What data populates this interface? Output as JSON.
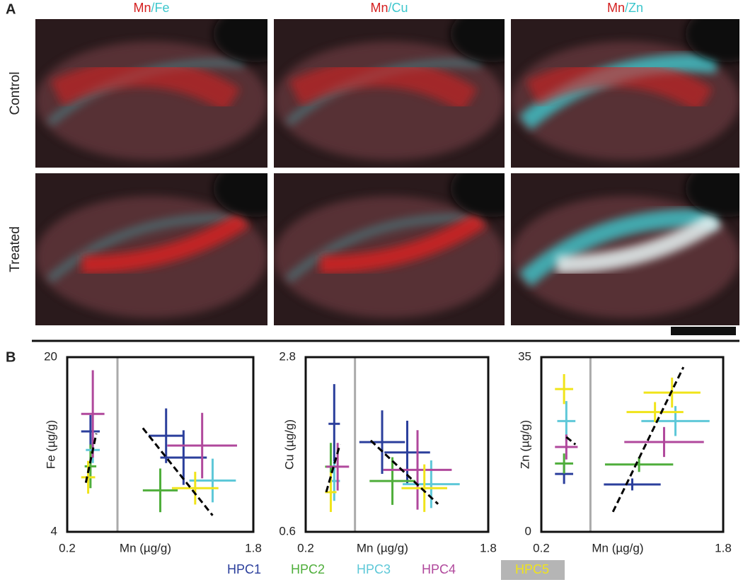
{
  "figure": {
    "panel_a_label": "A",
    "panel_b_label": "B",
    "columns": [
      [
        "Mn",
        "/Fe"
      ],
      [
        "Mn",
        "/Cu"
      ],
      [
        "Mn",
        "/Zn"
      ]
    ],
    "rows": [
      "Control",
      "Treated"
    ]
  },
  "chart_data": [
    {
      "type": "scatter",
      "x_label": "Mn (µg/g)",
      "y_label": "Fe (µg/g)",
      "xlim": [
        0.2,
        1.8
      ],
      "ylim": [
        4,
        20
      ],
      "xticks": [
        0.2,
        1.8
      ],
      "yticks": [
        4,
        20
      ],
      "series": [
        {
          "name": "HPC1",
          "color": "#2b3f9c",
          "x": [
            0.4,
            1.05,
            1.2
          ],
          "y": [
            13.2,
            12.8,
            10.8
          ],
          "xerr": [
            0.08,
            0.15,
            0.2
          ],
          "yerr": [
            1.5,
            2.5,
            2.5
          ]
        },
        {
          "name": "HPC2",
          "color": "#4fae3b",
          "x": [
            0.4,
            1.0
          ],
          "y": [
            10,
            7.8
          ],
          "xerr": [
            0.05,
            0.15
          ],
          "yerr": [
            2,
            2
          ]
        },
        {
          "name": "HPC3",
          "color": "#5ec8d8",
          "x": [
            0.42,
            1.45
          ],
          "y": [
            11.5,
            8.7
          ],
          "xerr": [
            0.06,
            0.2
          ],
          "yerr": [
            1.2,
            2
          ]
        },
        {
          "name": "HPC4",
          "color": "#b0489c",
          "x": [
            0.42,
            1.36
          ],
          "y": [
            14.8,
            11.9
          ],
          "xerr": [
            0.1,
            0.3
          ],
          "yerr": [
            4,
            3
          ]
        },
        {
          "name": "HPC5",
          "color": "#f0e41a",
          "x": [
            0.38,
            1.3
          ],
          "y": [
            9,
            8
          ],
          "xerr": [
            0.06,
            0.2
          ],
          "yerr": [
            1.5,
            1.5
          ]
        }
      ],
      "fits": [
        {
          "x": [
            0.36,
            0.45
          ],
          "y": [
            8.5,
            13
          ]
        },
        {
          "x": [
            0.85,
            1.45
          ],
          "y": [
            13.5,
            5.5
          ]
        }
      ]
    },
    {
      "type": "scatter",
      "x_label": "Mn (µg/g)",
      "y_label": "Cu (µg/g)",
      "xlim": [
        0.2,
        1.8
      ],
      "ylim": [
        0.6,
        2.8
      ],
      "xticks": [
        0.2,
        1.8
      ],
      "yticks": [
        0.6,
        2.8
      ],
      "series": [
        {
          "color": "#2b3f9c",
          "x": [
            0.45,
            0.87,
            1.09
          ],
          "y": [
            1.96,
            1.73,
            1.6
          ],
          "xerr": [
            0.05,
            0.2,
            0.2
          ],
          "yerr": [
            0.5,
            0.4,
            0.4
          ]
        },
        {
          "color": "#4fae3b",
          "x": [
            0.42,
            0.96
          ],
          "y": [
            1.42,
            1.24
          ],
          "xerr": [
            0.05,
            0.2
          ],
          "yerr": [
            0.3,
            0.3
          ]
        },
        {
          "color": "#5ec8d8",
          "x": [
            0.45,
            1.3
          ],
          "y": [
            1.24,
            1.2
          ],
          "xerr": [
            0.05,
            0.25
          ],
          "yerr": [
            0.25,
            0.3
          ]
        },
        {
          "color": "#b0489c",
          "x": [
            0.48,
            1.18
          ],
          "y": [
            1.42,
            1.38
          ],
          "xerr": [
            0.1,
            0.3
          ],
          "yerr": [
            0.3,
            0.5
          ]
        },
        {
          "color": "#f0e41a",
          "x": [
            0.42,
            1.24
          ],
          "y": [
            1.1,
            1.15
          ],
          "xerr": [
            0.05,
            0.2
          ],
          "yerr": [
            0.25,
            0.3
          ]
        }
      ],
      "fits": [
        {
          "x": [
            0.38,
            0.5
          ],
          "y": [
            1.1,
            1.7
          ]
        },
        {
          "x": [
            0.77,
            1.36
          ],
          "y": [
            1.75,
            0.95
          ]
        }
      ]
    },
    {
      "type": "scatter",
      "x_label": "Mn (µg/g)",
      "y_label": "Zn (µg/g)",
      "xlim": [
        0.2,
        1.8
      ],
      "ylim": [
        0,
        35
      ],
      "xticks": [
        0.2,
        1.8
      ],
      "yticks": [
        0,
        35
      ],
      "series": [
        {
          "color": "#2b3f9c",
          "x": [
            0.4,
            1.0
          ],
          "y": [
            11.6,
            9.5
          ],
          "xerr": [
            0.08,
            0.25
          ],
          "yerr": [
            2,
            1.2
          ]
        },
        {
          "color": "#4fae3b",
          "x": [
            0.4,
            1.06
          ],
          "y": [
            13.7,
            13.5
          ],
          "xerr": [
            0.08,
            0.3
          ],
          "yerr": [
            2,
            1.5
          ]
        },
        {
          "color": "#5ec8d8",
          "x": [
            0.42,
            1.38
          ],
          "y": [
            22.2,
            22.2
          ],
          "xerr": [
            0.08,
            0.3
          ],
          "yerr": [
            4,
            3
          ]
        },
        {
          "color": "#b0489c",
          "x": [
            0.42,
            1.28
          ],
          "y": [
            17,
            18
          ],
          "xerr": [
            0.1,
            0.35
          ],
          "yerr": [
            2.5,
            3
          ]
        },
        {
          "color": "#f0e41a",
          "x": [
            0.4,
            1.2,
            1.35
          ],
          "y": [
            28.6,
            24,
            27.9
          ],
          "xerr": [
            0.08,
            0.25,
            0.25
          ],
          "yerr": [
            3,
            2,
            3
          ]
        }
      ],
      "fits": [
        {
          "x": [
            0.42,
            0.5
          ],
          "y": [
            19,
            17.5
          ]
        },
        {
          "x": [
            0.83,
            1.45
          ],
          "y": [
            4,
            33
          ]
        }
      ]
    }
  ]
}
